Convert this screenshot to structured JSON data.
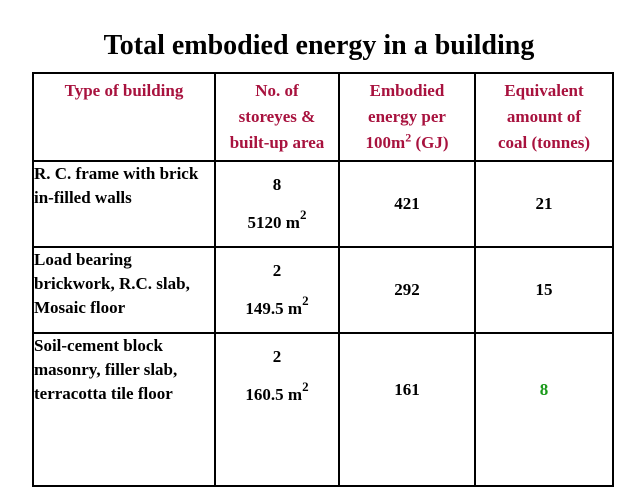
{
  "title": "Total embodied energy in a building",
  "table": {
    "headers": {
      "type": "Type of building",
      "storeys_line1": "No. of",
      "storeys_line2": "storeyes &",
      "storeys_line3": "built-up area",
      "energy_line1": "Embodied",
      "energy_line2": "energy per",
      "energy_base": "100m",
      "energy_sup": "2",
      "energy_unit": " (GJ)",
      "coal_line1": "Equivalent",
      "coal_line2": "amount of",
      "coal_line3": "coal (tonnes)"
    },
    "rows": [
      {
        "type": "R. C. frame with brick in-filled walls",
        "storeys": "8",
        "area": "5120 m",
        "area_sup": "2",
        "energy": "421",
        "coal": "21"
      },
      {
        "type": "Load bearing brickwork, R.C. slab, Mosaic floor",
        "storeys": "2",
        "area": "149.5 m",
        "area_sup": "2",
        "energy": "292",
        "coal": "15"
      },
      {
        "type": "Soil-cement block masonry, filler slab, terracotta tile floor",
        "storeys": "2",
        "area": "160.5 m",
        "area_sup": "2",
        "energy": "161",
        "coal": "8"
      }
    ]
  },
  "colors": {
    "header_text": "#a8123e",
    "highlight": "#1a9a1a"
  }
}
